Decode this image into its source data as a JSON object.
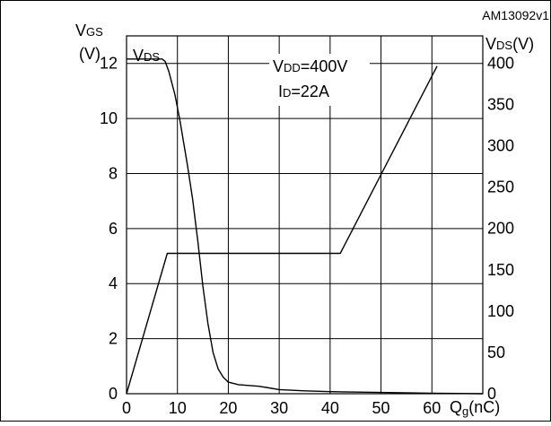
{
  "chart_data": {
    "type": "line",
    "id_label": "AM13092v1",
    "xlabel": {
      "main": "Q",
      "sub": "g",
      "unit": "(nC)"
    },
    "ylabel_left": {
      "main": "V",
      "sub": "GS",
      "unit": "(V)"
    },
    "ylabel_right": {
      "main": "V",
      "sub": "DS",
      "unit": "(V)"
    },
    "xlim": [
      0,
      70
    ],
    "ylim_left": [
      0,
      13
    ],
    "ylim_right": [
      0,
      433
    ],
    "x_ticks": [
      "0",
      "10",
      "20",
      "30",
      "40",
      "50",
      "60"
    ],
    "y_ticks_left": [
      "0",
      "2",
      "4",
      "6",
      "8",
      "10",
      "12"
    ],
    "y_ticks_right": [
      "0",
      "50",
      "100",
      "150",
      "200",
      "250",
      "300",
      "350",
      "400"
    ],
    "conditions": [
      {
        "main": "V",
        "sub": "DD",
        "rest": "=400V"
      },
      {
        "main": "I",
        "sub": "D",
        "rest": "=22A"
      }
    ],
    "series": [
      {
        "axis": "left",
        "values": [
          [
            0,
            0
          ],
          [
            8,
            5.1
          ],
          [
            42,
            5.1
          ],
          [
            61,
            11.9
          ]
        ]
      },
      {
        "name": "V_DS",
        "label": {
          "main": "V",
          "sub": "DS"
        },
        "axis": "right",
        "values": [
          [
            0,
            405
          ],
          [
            7,
            405
          ],
          [
            7.6,
            402
          ],
          [
            8.3,
            390
          ],
          [
            9.5,
            362
          ],
          [
            10.5,
            330
          ],
          [
            12,
            275
          ],
          [
            13,
            235
          ],
          [
            14,
            185
          ],
          [
            15,
            130
          ],
          [
            16,
            85
          ],
          [
            17,
            50
          ],
          [
            18,
            30
          ],
          [
            19,
            20
          ],
          [
            20,
            14
          ],
          [
            22,
            11
          ],
          [
            24,
            10
          ],
          [
            26,
            9
          ],
          [
            28,
            7
          ],
          [
            30,
            5
          ],
          [
            35,
            3.5
          ],
          [
            40,
            2.5
          ],
          [
            50,
            1.5
          ],
          [
            60,
            0.5
          ],
          [
            70,
            0
          ]
        ]
      }
    ]
  }
}
